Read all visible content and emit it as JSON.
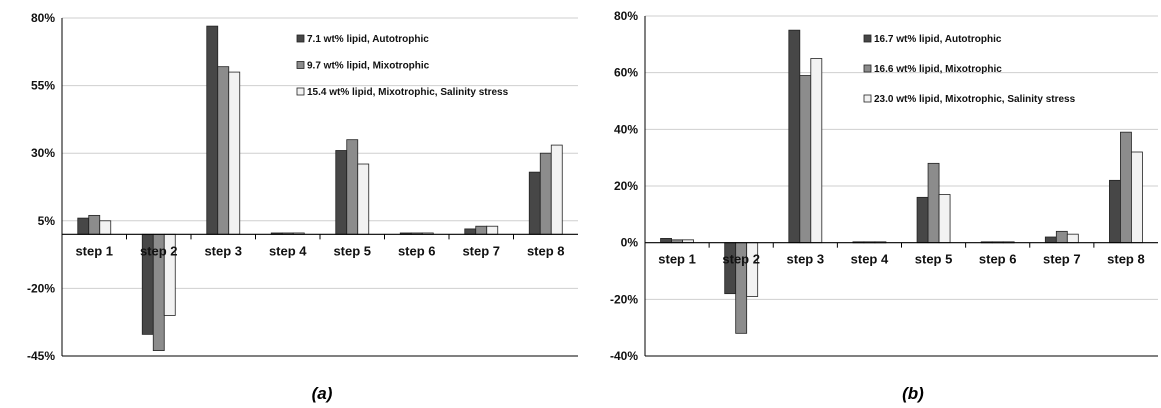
{
  "chart_data": [
    {
      "type": "bar",
      "caption": "(a)",
      "categories": [
        "step 1",
        "step 2",
        "step 3",
        "step 4",
        "step 5",
        "step 6",
        "step 7",
        "step 8"
      ],
      "ylim": [
        -45,
        80
      ],
      "yticks": [
        -45,
        -20,
        5,
        30,
        55,
        80
      ],
      "ytick_labels": [
        "-45%",
        "-20%",
        "5%",
        "30%",
        "55%",
        "80%"
      ],
      "grid": true,
      "legend_position": "top-right",
      "series": [
        {
          "name": "7.1 wt% lipid, Autotrophic",
          "color": "#474747",
          "values": [
            6,
            -37,
            77,
            0.5,
            31,
            0.5,
            2,
            23
          ]
        },
        {
          "name": "9.7 wt% lipid, Mixotrophic",
          "color": "#8c8c8c",
          "values": [
            7,
            -43,
            62,
            0.5,
            35,
            0.5,
            3,
            30
          ]
        },
        {
          "name": "15.4 wt% lipid, Mixotrophic, Salinity stress",
          "color": "#f2f2f2",
          "values": [
            5,
            -30,
            60,
            0.5,
            26,
            0.5,
            3,
            33
          ]
        }
      ]
    },
    {
      "type": "bar",
      "caption": "(b)",
      "categories": [
        "step 1",
        "step 2",
        "step 3",
        "step 4",
        "step 5",
        "step 6",
        "step 7",
        "step 8"
      ],
      "ylim": [
        -40,
        80
      ],
      "yticks": [
        -40,
        -20,
        0,
        20,
        40,
        60,
        80
      ],
      "ytick_labels": [
        "-40%",
        "-20%",
        "0%",
        "20%",
        "40%",
        "60%",
        "80%"
      ],
      "grid": true,
      "legend_position": "top-right",
      "series": [
        {
          "name": "16.7 wt% lipid, Autotrophic",
          "color": "#474747",
          "values": [
            1.5,
            -18,
            75,
            0.3,
            16,
            0.3,
            2,
            22
          ]
        },
        {
          "name": "16.6 wt% lipid, Mixotrophic",
          "color": "#8c8c8c",
          "values": [
            1,
            -32,
            59,
            0.3,
            28,
            0.3,
            4,
            39
          ]
        },
        {
          "name": "23.0 wt% lipid, Mixotrophic, Salinity stress",
          "color": "#f2f2f2",
          "values": [
            1,
            -19,
            65,
            0.3,
            17,
            0.3,
            3,
            32
          ]
        }
      ]
    }
  ]
}
